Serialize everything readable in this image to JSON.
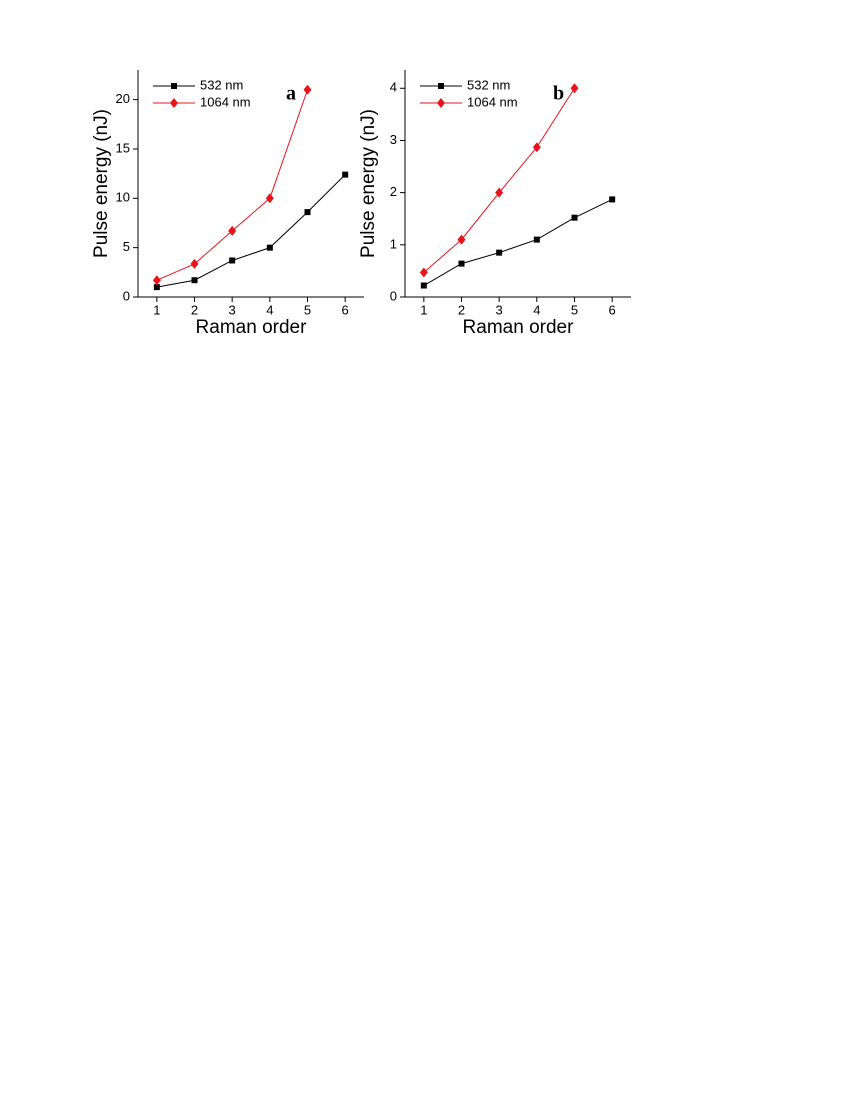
{
  "chart_data": [
    {
      "type": "line",
      "annotation": "a",
      "xlabel": "Raman order",
      "ylabel": "Pulse energy (nJ)",
      "x": [
        1,
        2,
        3,
        4,
        5,
        6
      ],
      "series": [
        {
          "name": "532 nm",
          "color": "#000000",
          "marker": "square",
          "values": [
            1.0,
            1.7,
            3.7,
            5.0,
            8.6,
            12.4
          ]
        },
        {
          "name": "1064 nm",
          "color": "#e8141b",
          "marker": "diamond",
          "values": [
            1.7,
            3.35,
            6.7,
            10.0,
            21.0,
            null
          ]
        }
      ],
      "xlim": [
        0.5,
        6.5
      ],
      "xticks": [
        1,
        2,
        3,
        4,
        5,
        6
      ],
      "ylim": [
        0,
        23
      ],
      "yticks": [
        0,
        5,
        10,
        15,
        20
      ],
      "legend": "upper left"
    },
    {
      "type": "line",
      "annotation": "b",
      "xlabel": "Raman order",
      "ylabel": "Pulse energy (nJ)",
      "x": [
        1,
        2,
        3,
        4,
        5,
        6
      ],
      "series": [
        {
          "name": "532 nm",
          "color": "#000000",
          "marker": "square",
          "values": [
            0.22,
            0.64,
            0.85,
            1.1,
            1.52,
            1.87
          ]
        },
        {
          "name": "1064 nm",
          "color": "#e8141b",
          "marker": "diamond",
          "values": [
            0.47,
            1.1,
            2.0,
            2.87,
            4.0,
            null
          ]
        }
      ],
      "xlim": [
        0.5,
        6.5
      ],
      "xticks": [
        1,
        2,
        3,
        4,
        5,
        6
      ],
      "ylim": [
        0,
        4.35
      ],
      "yticks": [
        0,
        1,
        2,
        3,
        4
      ],
      "legend": "upper left"
    }
  ]
}
